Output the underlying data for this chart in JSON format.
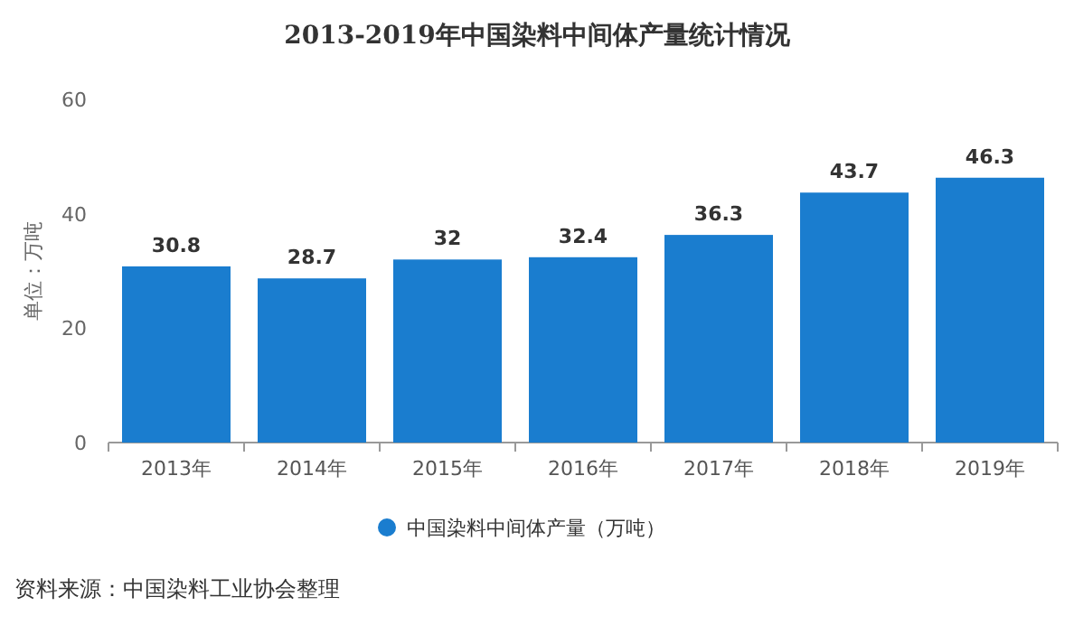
{
  "chart_data": {
    "type": "bar",
    "title": "2013-2019年中国染料中间体产量统计情况",
    "ylabel": "单位：万吨",
    "categories": [
      "2013年",
      "2014年",
      "2015年",
      "2016年",
      "2017年",
      "2018年",
      "2019年"
    ],
    "series": [
      {
        "name": "中国染料中间体产量（万吨）",
        "color": "#1a7dcf",
        "values": [
          30.8,
          28.7,
          32,
          32.4,
          36.3,
          43.7,
          46.3
        ]
      }
    ],
    "ylim": [
      0,
      60
    ],
    "yticks": [
      0,
      20,
      40,
      60
    ],
    "data_labels": true,
    "legend": "bottom",
    "grid": false,
    "annotations": [
      "资料来源：中国染料工业协会整理"
    ]
  }
}
